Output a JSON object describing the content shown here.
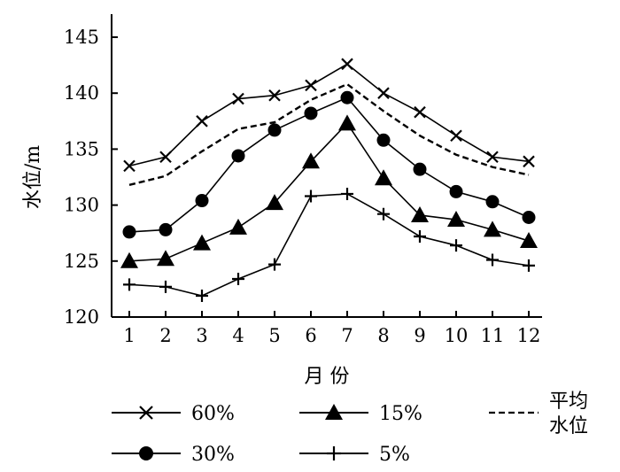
{
  "chart_data": {
    "type": "line",
    "xlabel": "月 份",
    "ylabel": "水位/m",
    "x": [
      1,
      2,
      3,
      4,
      5,
      6,
      7,
      8,
      9,
      10,
      11,
      12
    ],
    "xticks": [
      "1",
      "2",
      "3",
      "4",
      "5",
      "6",
      "7",
      "8",
      "9",
      "10",
      "11",
      "12"
    ],
    "ylim": [
      120,
      145
    ],
    "yticks": [
      "120",
      "125",
      "130",
      "135",
      "140",
      "145"
    ],
    "grid": false,
    "legend_position": "bottom",
    "series": [
      {
        "name": "60%",
        "marker": "x",
        "values": [
          133.5,
          134.3,
          137.5,
          139.5,
          139.8,
          140.7,
          142.6,
          140.0,
          138.3,
          136.2,
          134.3,
          133.9
        ]
      },
      {
        "name": "30%",
        "marker": "circle",
        "values": [
          127.6,
          127.8,
          130.4,
          134.4,
          136.7,
          138.2,
          139.6,
          135.8,
          133.2,
          131.2,
          130.3,
          128.9
        ]
      },
      {
        "name": "15%",
        "marker": "triangle",
        "values": [
          125.0,
          125.2,
          126.6,
          128.0,
          130.2,
          133.9,
          137.3,
          132.4,
          129.1,
          128.7,
          127.8,
          126.8
        ]
      },
      {
        "name": "5%",
        "marker": "plus",
        "values": [
          122.9,
          122.7,
          121.9,
          123.4,
          124.7,
          130.8,
          131.0,
          129.2,
          127.2,
          126.4,
          125.1,
          124.6
        ]
      },
      {
        "name": "平均水位",
        "marker": "none",
        "dash": true,
        "values": [
          131.8,
          132.6,
          134.8,
          136.8,
          137.4,
          139.4,
          140.8,
          138.4,
          136.2,
          134.5,
          133.4,
          132.7
        ]
      }
    ],
    "legend": {
      "row1": [
        {
          "label": "60%"
        },
        {
          "label": "15%"
        }
      ],
      "row2": [
        {
          "label": "30%"
        },
        {
          "label": "5%"
        }
      ],
      "mean_line1": "平均",
      "mean_line2": "水位"
    }
  }
}
